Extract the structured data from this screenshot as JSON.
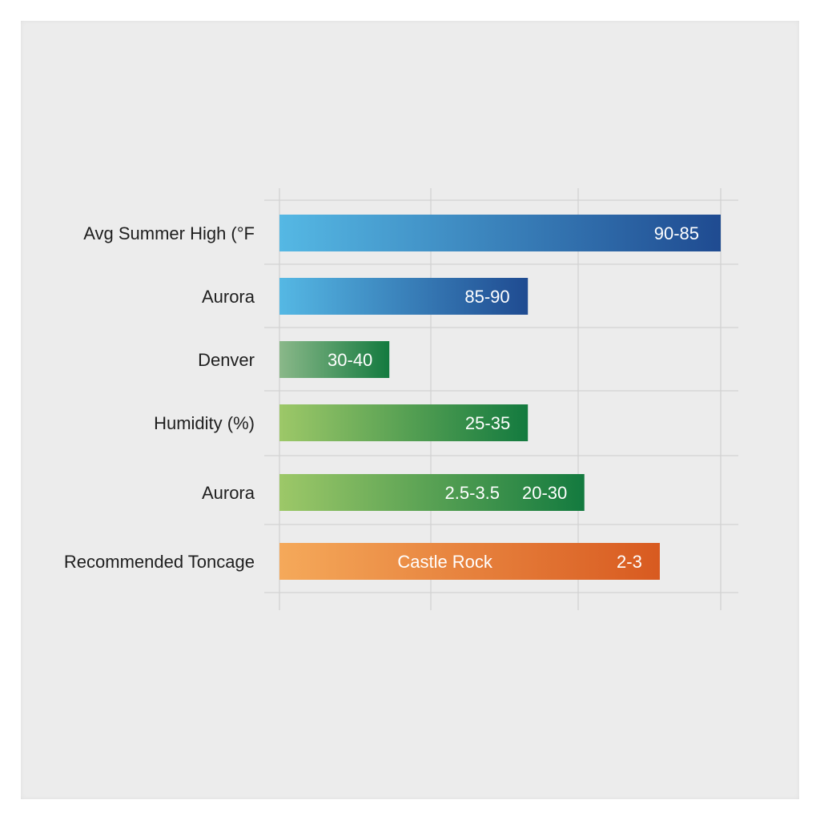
{
  "chart_data": {
    "type": "bar",
    "orientation": "horizontal",
    "grid": true,
    "rows": [
      {
        "category": "Avg Summer High (°F",
        "start": 0,
        "end": 1.0,
        "fill": [
          "#55b8e4",
          "#1f4b91"
        ],
        "labels": [
          {
            "text": "90-85",
            "at": 0.9
          }
        ]
      },
      {
        "category": "Aurora",
        "start": 0,
        "end": 0.563,
        "fill": [
          "#55b8e4",
          "#1f4b91"
        ],
        "labels": [
          {
            "text": "85-90",
            "at": 0.471
          }
        ]
      },
      {
        "category": "Denver",
        "start": 0,
        "end": 0.249,
        "fill": [
          "#8ab889",
          "#137a3f"
        ],
        "labels": [
          {
            "text": "30-40",
            "at": 0.16
          }
        ]
      },
      {
        "category": "Humidity (%)",
        "start": 0,
        "end": 0.563,
        "fill": [
          "#9dc868",
          "#137a3f"
        ],
        "labels": [
          {
            "text": "25-35",
            "at": 0.472
          }
        ]
      },
      {
        "category": "Aurora",
        "start": 0,
        "end": 0.691,
        "fill": [
          "#9dc868",
          "#137a3f"
        ],
        "labels": [
          {
            "text": "2.5-3.5",
            "at": 0.437
          },
          {
            "text": "20-30",
            "at": 0.601
          }
        ]
      },
      {
        "category": "Recommended Toncage",
        "start": 0,
        "end": 0.862,
        "fill": [
          "#f5a95a",
          "#d85a20"
        ],
        "labels": [
          {
            "text": "Castle Rock",
            "at": 0.375
          },
          {
            "text": "2-3",
            "at": 0.793
          }
        ]
      }
    ]
  }
}
